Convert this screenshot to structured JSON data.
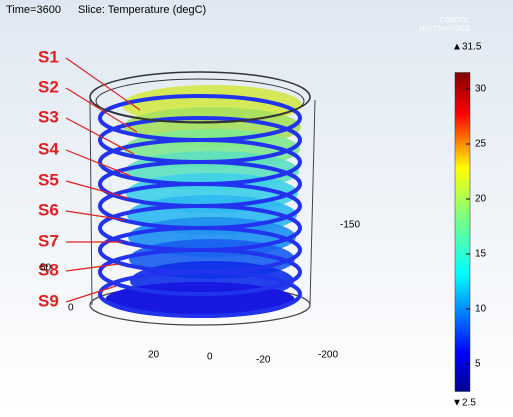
{
  "header": {
    "time": "Time=3600",
    "slice": "Slice: Temperature (degC)"
  },
  "logo": [
    "COMSOL",
    "MULTIPHYSICS"
  ],
  "slice_labels": [
    "S1",
    "S2",
    "S3",
    "S4",
    "S5",
    "S6",
    "S7",
    "S8",
    "S9"
  ],
  "axis_labels": [
    "-150",
    "0",
    "50",
    "20",
    "0",
    "-20",
    "-200"
  ],
  "colorbar": {
    "max": 31.5,
    "min": 2.5,
    "ticks": [
      5,
      10,
      15,
      20,
      25,
      30
    ]
  }
}
